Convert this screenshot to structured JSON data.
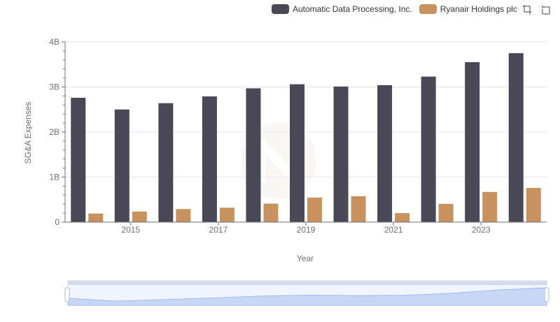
{
  "chart_data": {
    "type": "bar",
    "xlabel": "Year",
    "ylabel": "SG&A Expenses",
    "ylim": [
      0,
      4000000000
    ],
    "yticks": [
      {
        "value": 0,
        "label": "0"
      },
      {
        "value": 1000000000,
        "label": "1B"
      },
      {
        "value": 2000000000,
        "label": "2B"
      },
      {
        "value": 3000000000,
        "label": "3B"
      },
      {
        "value": 4000000000,
        "label": "4B"
      }
    ],
    "categories": [
      "2014",
      "2015",
      "2016",
      "2017",
      "2018",
      "2019",
      "2020",
      "2021",
      "2022",
      "2023",
      "2024"
    ],
    "xtick_labels": [
      "",
      "2015",
      "",
      "2017",
      "",
      "2019",
      "",
      "2021",
      "",
      "2023",
      ""
    ],
    "series": [
      {
        "name": "Automatic Data Processing, Inc.",
        "color": "#484856",
        "values": [
          2760000000,
          2500000000,
          2640000000,
          2790000000,
          2970000000,
          3060000000,
          3010000000,
          3040000000,
          3230000000,
          3550000000,
          3750000000
        ]
      },
      {
        "name": "Ryanair Holdings plc",
        "color": "#c8925e",
        "values": [
          190000000,
          235000000,
          290000000,
          320000000,
          410000000,
          545000000,
          575000000,
          200000000,
          405000000,
          670000000,
          760000000
        ]
      }
    ],
    "legend_position": "top-right",
    "grid": true,
    "zoom_slider": true
  },
  "toolbox": {
    "zoom_icon": "zoom-icon",
    "restore_icon": "restore-icon"
  }
}
